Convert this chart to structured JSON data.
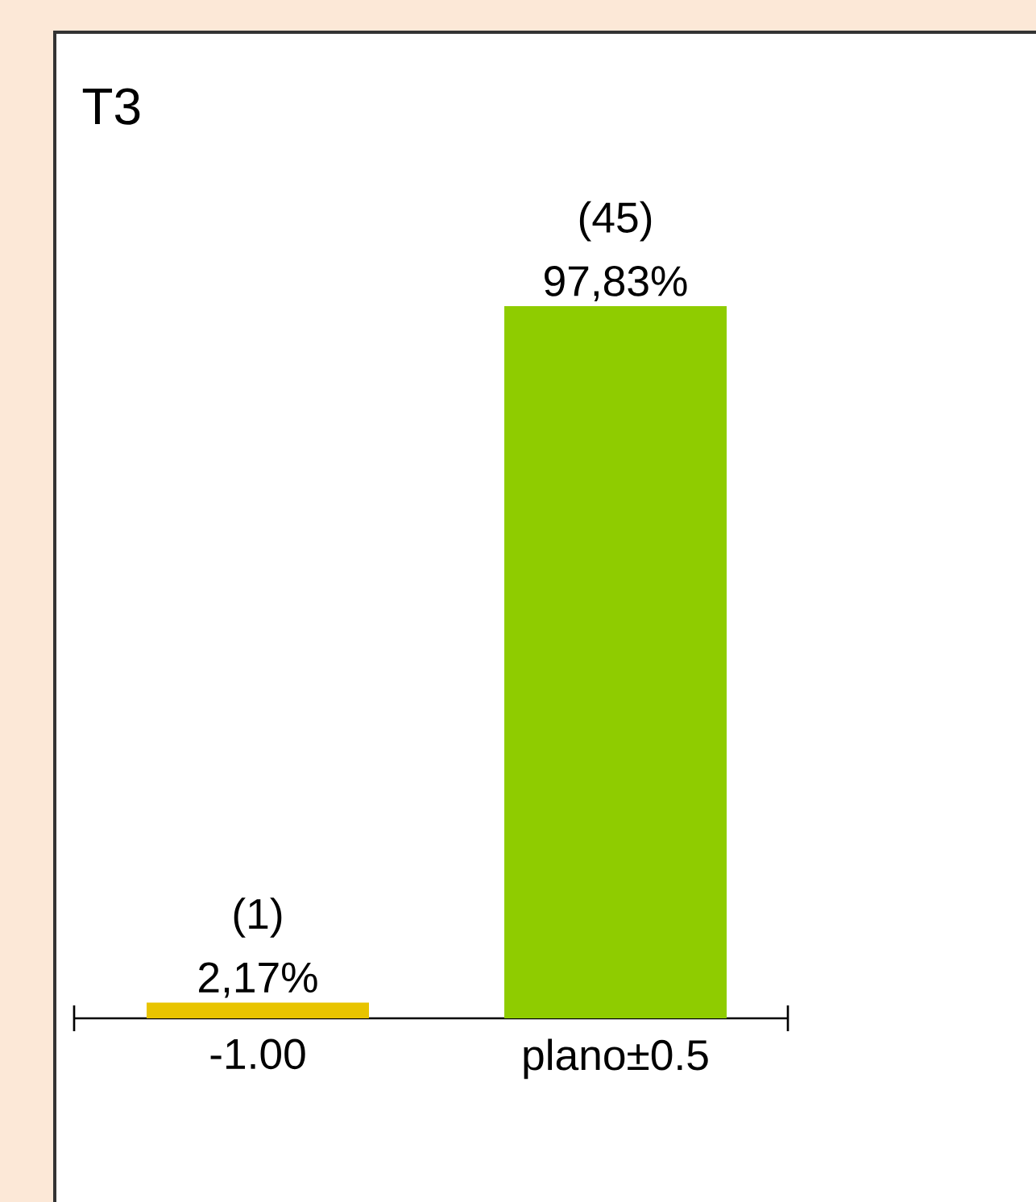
{
  "chart_data": {
    "type": "bar",
    "title": "T3",
    "categories": [
      "-1.00",
      "plano±0.5"
    ],
    "values": [
      2.17,
      97.83
    ],
    "colors": [
      "#e8c400",
      "#8fcc00"
    ],
    "value_labels": [
      "2,17%",
      "97,83%"
    ],
    "annotations": [
      {
        "text": "(1)",
        "x": "-1.00",
        "y": 2.17
      },
      {
        "text": "(45)",
        "x": "plano±0.5",
        "y": 97.83
      }
    ],
    "ylim": [
      0,
      97.83
    ]
  }
}
